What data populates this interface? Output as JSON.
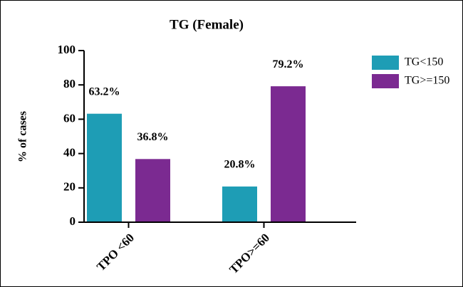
{
  "chart_data": {
    "type": "bar",
    "title": "TG (Female)",
    "y_label": "% of cases",
    "categories": [
      "TPO <60",
      "TPO>=60"
    ],
    "series": [
      {
        "name": "TG<150",
        "color": "#1e9db5",
        "values": [
          63.2,
          20.8
        ],
        "value_labels": [
          "63.2%",
          "20.8%"
        ]
      },
      {
        "name": "TG>=150",
        "color": "#7b2a91",
        "values": [
          36.8,
          79.2
        ],
        "value_labels": [
          "36.8%",
          "79.2%"
        ]
      }
    ],
    "ylim": [
      0,
      100
    ],
    "yticks": [
      0,
      20,
      40,
      60,
      80,
      100
    ],
    "legend": "right"
  }
}
